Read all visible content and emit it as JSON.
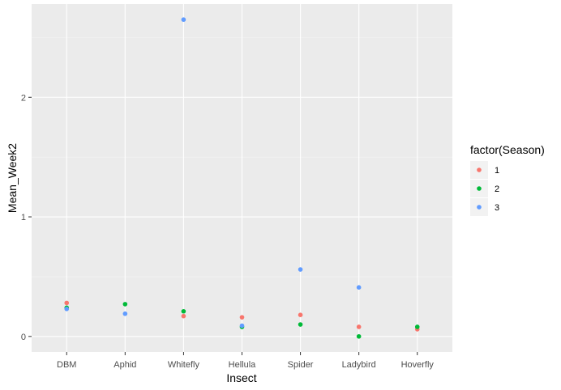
{
  "chart_data": {
    "type": "scatter",
    "title": "",
    "xlabel": "Insect",
    "ylabel": "Mean_Week2",
    "categories": [
      "DBM",
      "Aphid",
      "Whitefly",
      "Hellula",
      "Spider",
      "Ladybird",
      "Hoverfly"
    ],
    "y_ticks": [
      "0",
      "1",
      "2"
    ],
    "ylim": [
      -0.13,
      2.78
    ],
    "grid": true,
    "legend": {
      "title": "factor(Season)",
      "placement": "right",
      "entries": [
        "1",
        "2",
        "3"
      ]
    },
    "series": [
      {
        "name": "1",
        "color": "#F8766D",
        "values": [
          0.28,
          null,
          0.17,
          0.16,
          0.18,
          0.08,
          0.06
        ]
      },
      {
        "name": "2",
        "color": "#00BA38",
        "values": [
          0.24,
          0.27,
          0.21,
          0.08,
          0.1,
          0.0,
          0.08
        ]
      },
      {
        "name": "3",
        "color": "#619CFF",
        "values": [
          0.23,
          0.19,
          2.65,
          0.09,
          0.56,
          0.41,
          null
        ]
      }
    ]
  }
}
